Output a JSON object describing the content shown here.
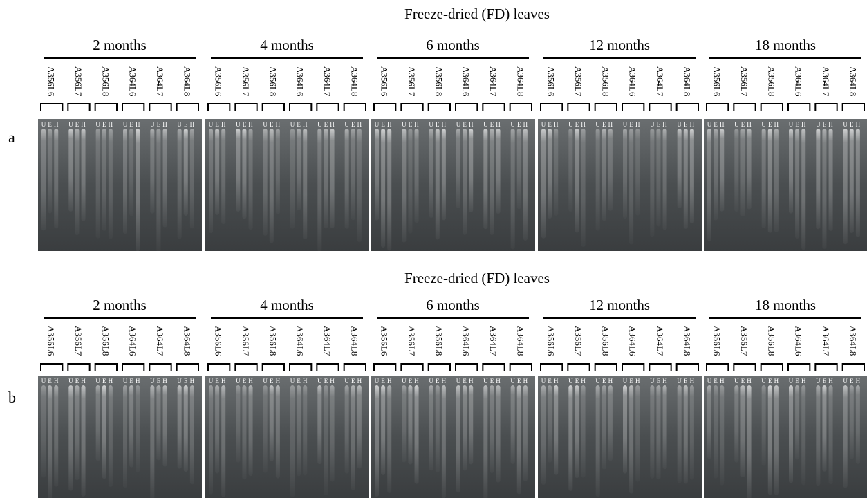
{
  "panels": [
    {
      "letter": "a",
      "title": "Freeze-dried (FD) leaves",
      "groups": [
        "2 months",
        "4 months",
        "6 months",
        "12 months",
        "18 months"
      ]
    },
    {
      "letter": "b",
      "title": "Freeze-dried (FD) leaves",
      "groups": [
        "2 months",
        "4 months",
        "6 months",
        "12 months",
        "18 months"
      ]
    }
  ],
  "lanes": [
    "A356L6",
    "A356L7",
    "A356L8",
    "A364L6",
    "A364L7",
    "A364L8"
  ],
  "lane_letters": [
    "U",
    "E",
    "H"
  ]
}
